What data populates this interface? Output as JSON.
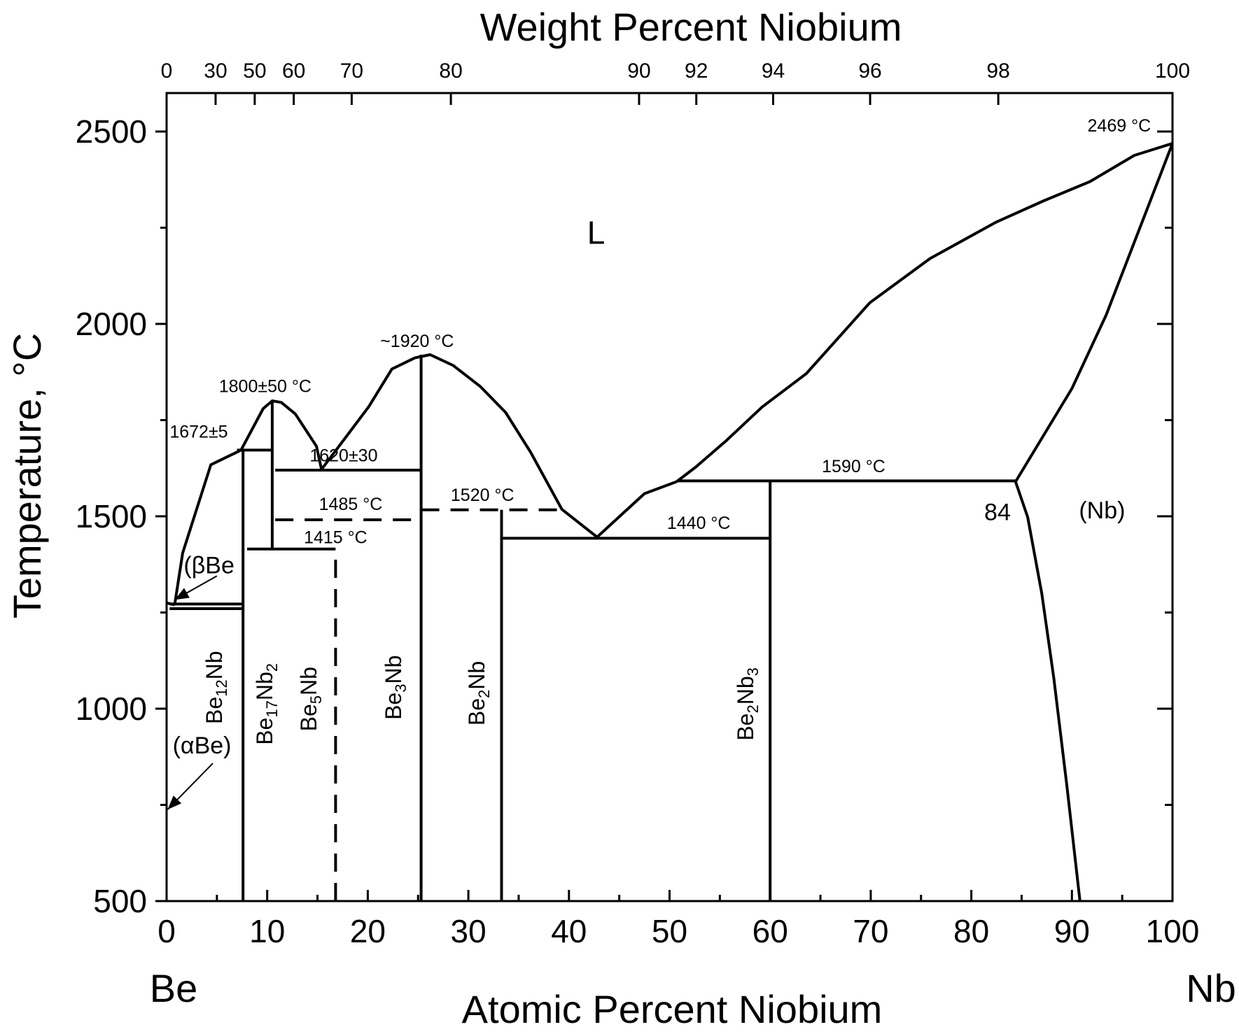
{
  "chart_data": {
    "type": "line",
    "title": "",
    "xlabel": "Atomic Percent Niobium",
    "ylabel": "Temperature, °C",
    "top_xlabel": "Weight Percent Niobium",
    "xlim": [
      0,
      100
    ],
    "ylim": [
      500,
      2600
    ],
    "x_ticks": [
      0,
      10,
      20,
      30,
      40,
      50,
      60,
      70,
      80,
      90,
      100
    ],
    "y_ticks": [
      500,
      1000,
      1500,
      2000,
      2500
    ],
    "top_ticks": [
      {
        "label": "0",
        "at": 0.0
      },
      {
        "label": "30",
        "at": 4.87
      },
      {
        "label": "50",
        "at": 8.76
      },
      {
        "label": "60",
        "at": 12.64
      },
      {
        "label": "70",
        "at": 18.4
      },
      {
        "label": "80",
        "at": 28.26
      },
      {
        "label": "90",
        "at": 46.97
      },
      {
        "label": "92",
        "at": 52.66
      },
      {
        "label": "94",
        "at": 60.3
      },
      {
        "label": "96",
        "at": 69.94
      },
      {
        "label": "98",
        "at": 82.68
      },
      {
        "label": "100",
        "at": 100.0
      }
    ],
    "end_labels": {
      "left": "Be",
      "right": "Nb"
    },
    "series": [
      {
        "name": "liquidus_be_rich",
        "style": "solid",
        "points": [
          [
            0.8,
            1270
          ],
          [
            1.6,
            1405
          ],
          [
            4.4,
            1634
          ],
          [
            7.4,
            1672
          ],
          [
            9.6,
            1780
          ],
          [
            10.5,
            1800
          ],
          [
            11.4,
            1796
          ],
          [
            12.8,
            1766
          ],
          [
            14.9,
            1682
          ],
          [
            15.4,
            1622
          ],
          [
            17.6,
            1698
          ],
          [
            20.1,
            1785
          ],
          [
            22.4,
            1883
          ],
          [
            24.7,
            1912
          ],
          [
            26.2,
            1920
          ],
          [
            28.5,
            1892
          ],
          [
            31.2,
            1837
          ],
          [
            33.7,
            1770
          ],
          [
            36.2,
            1666
          ],
          [
            39.3,
            1518
          ],
          [
            42.8,
            1446
          ],
          [
            47.5,
            1559
          ],
          [
            50.7,
            1590
          ]
        ]
      },
      {
        "name": "liquidus_nb_side",
        "style": "solid",
        "points": [
          [
            50.7,
            1590
          ],
          [
            52.6,
            1628
          ],
          [
            55.7,
            1698
          ],
          [
            59.2,
            1784
          ],
          [
            63.6,
            1871
          ],
          [
            69.9,
            2055
          ],
          [
            75.9,
            2170
          ],
          [
            82.5,
            2265
          ],
          [
            87.2,
            2320
          ],
          [
            91.8,
            2370
          ],
          [
            96.2,
            2438
          ],
          [
            100.0,
            2469
          ]
        ]
      },
      {
        "name": "solidus_nb",
        "style": "solid",
        "points": [
          [
            84.4,
            1590
          ],
          [
            90.0,
            1832
          ],
          [
            93.4,
            2023
          ],
          [
            100.0,
            2469
          ]
        ]
      },
      {
        "name": "solvus_nb",
        "style": "solid",
        "points": [
          [
            84.4,
            1590
          ],
          [
            85.6,
            1498
          ],
          [
            87.0,
            1300
          ],
          [
            88.2,
            1080
          ],
          [
            89.5,
            800
          ],
          [
            90.8,
            500
          ]
        ]
      },
      {
        "name": "beta_be_solvus",
        "style": "solid",
        "points": [
          [
            0.0,
            1275
          ],
          [
            0.8,
            1270
          ]
        ]
      },
      {
        "name": "be12nb_upper",
        "style": "solid",
        "points": [
          [
            0.3,
            1272
          ],
          [
            7.6,
            1272
          ]
        ]
      },
      {
        "name": "be12nb_lower",
        "style": "solid",
        "points": [
          [
            0.3,
            1260
          ],
          [
            7.6,
            1260
          ]
        ]
      },
      {
        "name": "peritectic_1672",
        "style": "solid",
        "points": [
          [
            7.0,
            1672
          ],
          [
            10.5,
            1672
          ]
        ]
      },
      {
        "name": "peritectic_1620",
        "style": "solid",
        "points": [
          [
            10.8,
            1620
          ],
          [
            25.3,
            1620
          ]
        ]
      },
      {
        "name": "transform_1485",
        "style": "dashed",
        "points": [
          [
            10.8,
            1491
          ],
          [
            25.3,
            1491
          ]
        ]
      },
      {
        "name": "transform_1520",
        "style": "dashed",
        "points": [
          [
            25.3,
            1517
          ],
          [
            39.3,
            1517
          ]
        ]
      },
      {
        "name": "eutectic_1415",
        "style": "solid",
        "points": [
          [
            8.0,
            1415
          ],
          [
            16.8,
            1415
          ]
        ]
      },
      {
        "name": "eutectic_1440",
        "style": "solid",
        "points": [
          [
            33.3,
            1443
          ],
          [
            60.0,
            1443
          ]
        ]
      },
      {
        "name": "peritectic_1590",
        "style": "solid",
        "points": [
          [
            50.7,
            1592
          ],
          [
            84.4,
            1592
          ]
        ]
      },
      {
        "name": "be17nb2_line",
        "style": "solid",
        "points": [
          [
            10.5,
            1415
          ],
          [
            10.5,
            1800
          ]
        ]
      },
      {
        "name": "be5nb_line",
        "style": "dashed",
        "points": [
          [
            16.8,
            500
          ],
          [
            16.8,
            1415
          ]
        ]
      },
      {
        "name": "be3nb_line",
        "style": "solid",
        "points": [
          [
            25.3,
            500
          ],
          [
            25.3,
            1920
          ]
        ]
      },
      {
        "name": "be2nb_line",
        "style": "solid",
        "points": [
          [
            33.3,
            500
          ],
          [
            33.3,
            1517
          ]
        ]
      },
      {
        "name": "be2nb3_line",
        "style": "solid",
        "points": [
          [
            60.0,
            500
          ],
          [
            60.0,
            1592
          ]
        ]
      },
      {
        "name": "highlight_line",
        "style": "highlight",
        "points": [
          [
            7.6,
            500
          ],
          [
            7.6,
            1672
          ]
        ]
      }
    ],
    "annotations": [
      {
        "text": "2469 °C",
        "x": 94.7,
        "y": 2500,
        "kind": "ann",
        "anchor": "middle"
      },
      {
        "text": "~1920 °C",
        "x": 24.9,
        "y": 1940,
        "kind": "ann",
        "anchor": "middle"
      },
      {
        "text": "1800±50 °C",
        "x": 9.8,
        "y": 1823,
        "kind": "ann",
        "anchor": "middle"
      },
      {
        "text": "1672±5",
        "x": 3.2,
        "y": 1705,
        "kind": "ann",
        "anchor": "middle"
      },
      {
        "text": "1620±30",
        "x": 17.6,
        "y": 1643,
        "kind": "ann",
        "anchor": "middle"
      },
      {
        "text": "1485 °C",
        "x": 18.3,
        "y": 1516,
        "kind": "ann",
        "anchor": "middle"
      },
      {
        "text": "1415 °C",
        "x": 16.8,
        "y": 1430,
        "kind": "ann",
        "anchor": "middle"
      },
      {
        "text": "1520 °C",
        "x": 31.4,
        "y": 1540,
        "kind": "ann",
        "anchor": "middle"
      },
      {
        "text": "1440 °C",
        "x": 52.9,
        "y": 1467,
        "kind": "ann",
        "anchor": "middle"
      },
      {
        "text": "1590 °C",
        "x": 68.3,
        "y": 1615,
        "kind": "ann",
        "anchor": "middle"
      },
      {
        "text": "L",
        "x": 42.7,
        "y": 2208,
        "kind": "big",
        "anchor": "middle"
      },
      {
        "text": "84",
        "x": 82.6,
        "y": 1490,
        "kind": "phase",
        "anchor": "middle"
      },
      {
        "text": "(Nb)",
        "x": 93.0,
        "y": 1495,
        "kind": "phase",
        "anchor": "middle"
      },
      {
        "text": "(βBe",
        "x": 1.7,
        "y": 1352,
        "kind": "phase",
        "anchor": "start"
      },
      {
        "text": "(αBe)",
        "x": 0.6,
        "y": 884,
        "kind": "phase",
        "anchor": "start"
      }
    ],
    "arrows": [
      {
        "name": "beta-be-arrow",
        "from": [
          5.0,
          1345
        ],
        "to": [
          0.8,
          1283
        ]
      },
      {
        "name": "alpha-be-arrow",
        "from": [
          4.6,
          858
        ],
        "to": [
          0.1,
          738
        ]
      }
    ],
    "compounds": [
      {
        "parts": [
          "Be",
          "12",
          "Nb"
        ],
        "x": 5.5,
        "y": 1055
      },
      {
        "parts": [
          "Be",
          "17",
          "Nb",
          "2"
        ],
        "x": 10.5,
        "y": 1012
      },
      {
        "parts": [
          "Be",
          "5",
          "Nb"
        ],
        "x": 14.9,
        "y": 1025
      },
      {
        "parts": [
          "Be",
          "3",
          "Nb"
        ],
        "x": 23.3,
        "y": 1055
      },
      {
        "parts": [
          "Be",
          "2",
          "Nb"
        ],
        "x": 31.6,
        "y": 1040
      },
      {
        "parts": [
          "Be",
          "2",
          "Nb",
          "3"
        ],
        "x": 58.3,
        "y": 1012
      }
    ]
  }
}
